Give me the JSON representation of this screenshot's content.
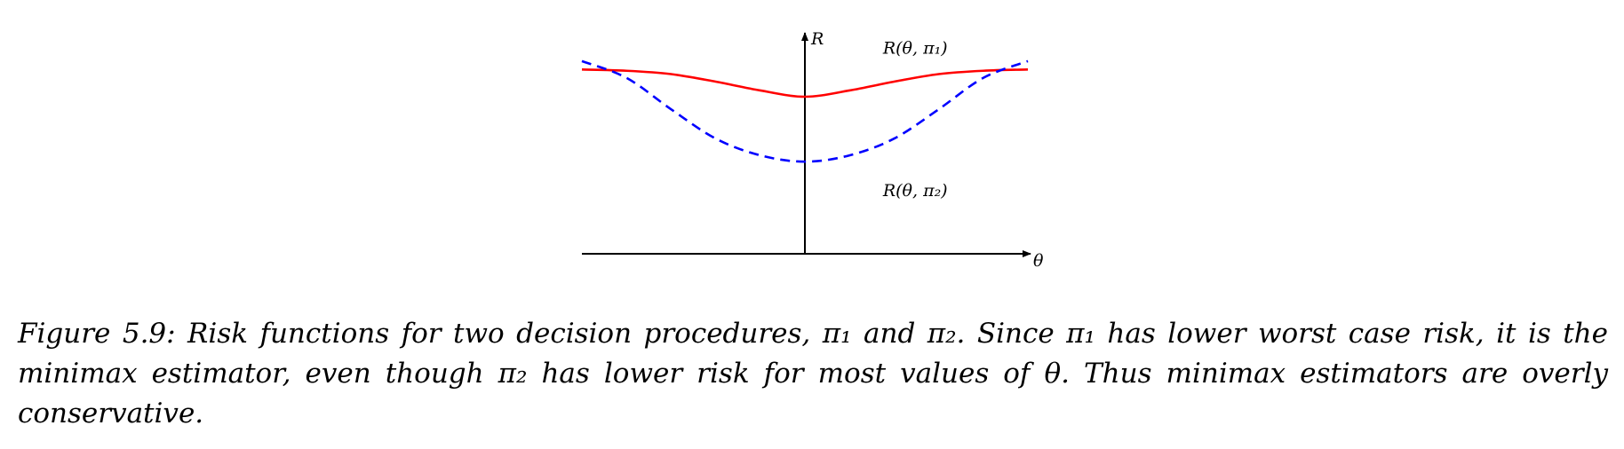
{
  "figure": {
    "caption": "Figure 5.9: Risk functions for two decision procedures, π₁ and π₂. Since π₁ has lower worst case risk, it is the minimax estimator, even though π₂ has lower risk for most values of θ. Thus minimax estimators are overly conservative."
  },
  "chart_data": {
    "type": "line",
    "xlabel": "θ",
    "ylabel": "R",
    "xlim": [
      -1,
      1
    ],
    "ylim": [
      0,
      1
    ],
    "grid": false,
    "legend": "none",
    "series": [
      {
        "name": "R(θ, π₁)",
        "color": "#ff0000",
        "style": "solid",
        "x": [
          -1.0,
          -0.8,
          -0.6,
          -0.4,
          -0.2,
          0.0,
          0.2,
          0.4,
          0.6,
          0.8,
          1.0
        ],
        "y": [
          0.88,
          0.874,
          0.858,
          0.822,
          0.78,
          0.75,
          0.78,
          0.822,
          0.858,
          0.874,
          0.88
        ]
      },
      {
        "name": "R(θ, π₂)",
        "color": "#0000ff",
        "style": "dashed",
        "x": [
          -1.0,
          -0.8,
          -0.6,
          -0.4,
          -0.2,
          0.0,
          0.2,
          0.4,
          0.6,
          0.8,
          1.0
        ],
        "y": [
          0.92,
          0.84,
          0.69,
          0.55,
          0.47,
          0.44,
          0.47,
          0.55,
          0.69,
          0.84,
          0.92
        ]
      }
    ]
  }
}
